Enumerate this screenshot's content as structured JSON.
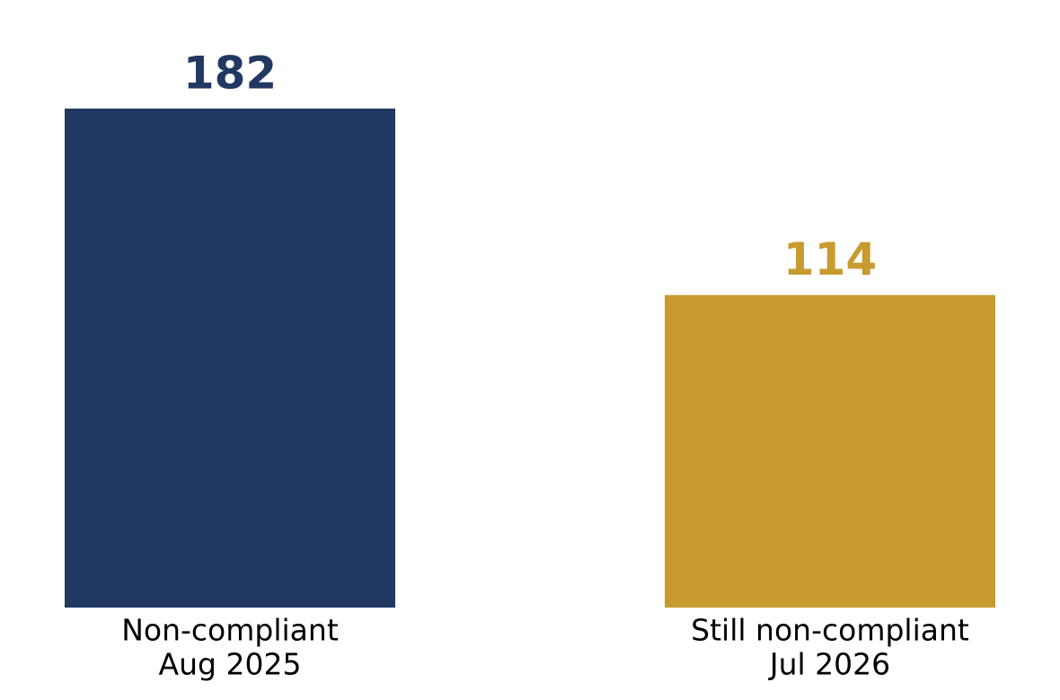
{
  "chart_data": {
    "type": "bar",
    "categories": [
      [
        "Non-compliant",
        "Aug 2025"
      ],
      [
        "Still non-compliant",
        "Jul 2026"
      ]
    ],
    "values": [
      182,
      114
    ],
    "colors": [
      "#213863",
      "#c89b30"
    ]
  }
}
